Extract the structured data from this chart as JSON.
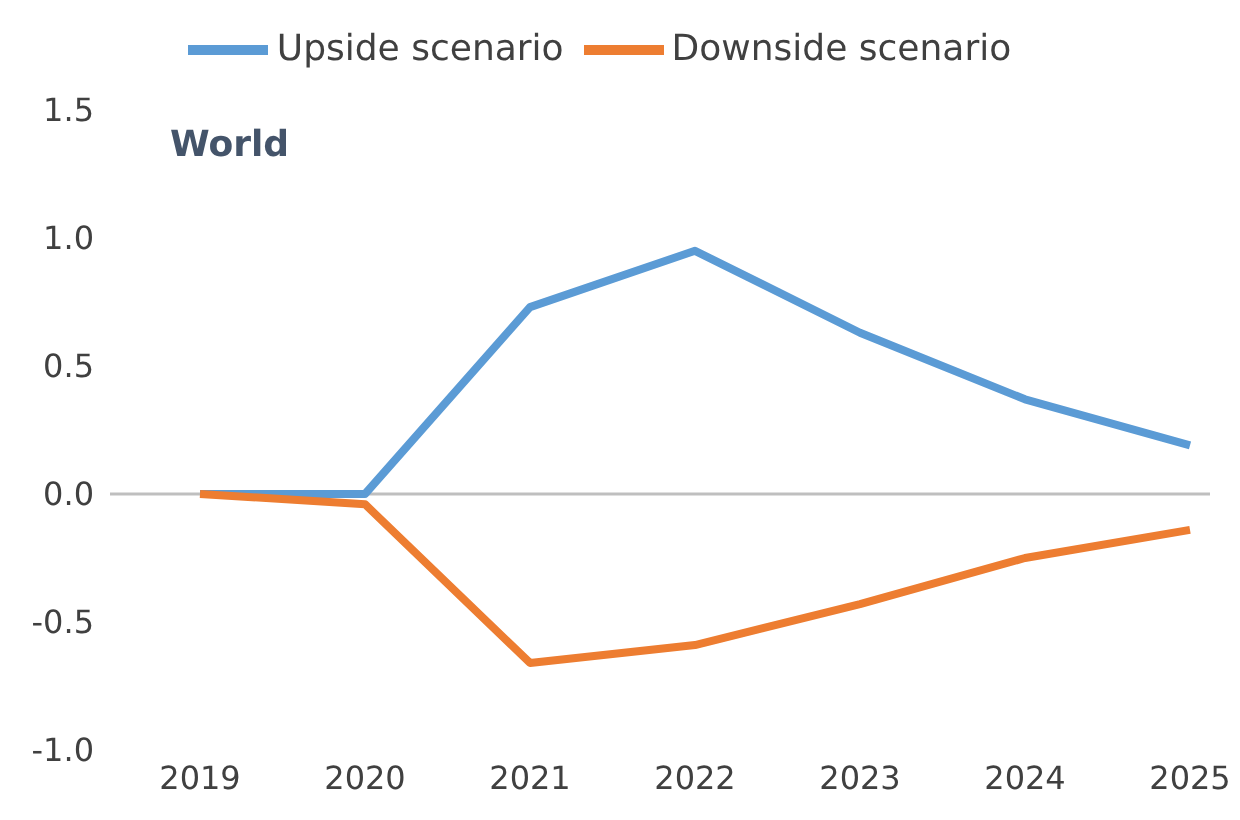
{
  "chart_data": {
    "type": "line",
    "categories": [
      "2019",
      "2020",
      "2021",
      "2022",
      "2023",
      "2024",
      "2025"
    ],
    "series": [
      {
        "name": "Upside scenario",
        "color": "#5b9bd5",
        "values": [
          0,
          0,
          0.73,
          0.95,
          0.63,
          0.37,
          0.19
        ]
      },
      {
        "name": "Downside scenario",
        "color": "#ed7d31",
        "values": [
          0,
          -0.04,
          -0.66,
          -0.59,
          -0.43,
          -0.25,
          -0.14
        ]
      }
    ],
    "ylim": [
      -1.0,
      1.5
    ],
    "yticks": [
      {
        "value": -1,
        "label": "-1.0"
      },
      {
        "value": -0.5,
        "label": "-0.5"
      },
      {
        "value": 0,
        "label": "0.0"
      },
      {
        "value": 0.5,
        "label": "0.5"
      },
      {
        "value": 1,
        "label": "1.0"
      },
      {
        "value": 1.5,
        "label": "1.5"
      }
    ],
    "ref_lines": [
      {
        "axis": "y",
        "value": 0,
        "color": "#bfbfbf"
      }
    ],
    "annotations": [
      "World"
    ],
    "grid": false,
    "legend": "top",
    "marker": "none",
    "line_style": "solid"
  }
}
